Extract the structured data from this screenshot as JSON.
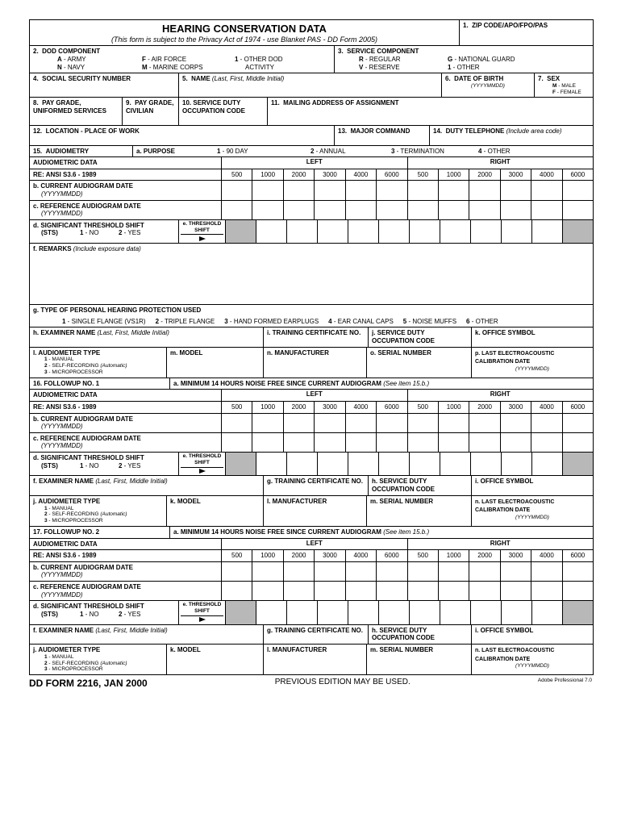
{
  "title": "HEARING CONSERVATION DATA",
  "subtitle": "(This form is subject to the Privacy Act of 1974 - use Blanket PAS - DD Form 2005)",
  "f1": {
    "num": "1.",
    "label": "ZIP CODE/APO/FPO/PAS"
  },
  "f2": {
    "num": "2.",
    "label": "DOD COMPONENT",
    "opts": [
      [
        "A",
        "ARMY"
      ],
      [
        "F",
        "AIR FORCE"
      ],
      [
        "1",
        "OTHER DOD"
      ],
      [
        "N",
        "NAVY"
      ],
      [
        "M",
        "MARINE CORPS"
      ],
      [
        "",
        "ACTIVITY"
      ]
    ]
  },
  "f3": {
    "num": "3.",
    "label": "SERVICE COMPONENT",
    "opts": [
      [
        "R",
        "REGULAR"
      ],
      [
        "G",
        "NATIONAL GUARD"
      ],
      [
        "V",
        "RESERVE"
      ],
      [
        "1",
        "OTHER"
      ]
    ]
  },
  "f4": {
    "num": "4.",
    "label": "SOCIAL SECURITY NUMBER"
  },
  "f5": {
    "num": "5.",
    "label": "NAME",
    "hint": "(Last, First, Middle Initial)"
  },
  "f6": {
    "num": "6.",
    "label": "DATE OF BIRTH",
    "hint": "(YYYYMMDD)"
  },
  "f7": {
    "num": "7.",
    "label": "SEX",
    "opts": [
      [
        "M",
        "MALE"
      ],
      [
        "F",
        "FEMALE"
      ]
    ]
  },
  "f8": {
    "num": "8.",
    "label": "PAY GRADE, UNIFORMED SERVICES"
  },
  "f9": {
    "num": "9.",
    "label": "PAY GRADE, CIVILIAN"
  },
  "f10": {
    "num": "10.",
    "label": "SERVICE DUTY OCCUPATION CODE"
  },
  "f11": {
    "num": "11.",
    "label": "MAILING ADDRESS OF ASSIGNMENT"
  },
  "f12": {
    "num": "12.",
    "label": "LOCATION - PLACE OF WORK"
  },
  "f13": {
    "num": "13.",
    "label": "MAJOR COMMAND"
  },
  "f14": {
    "num": "14.",
    "label": "DUTY TELEPHONE",
    "hint": "(Include area code)"
  },
  "f15": {
    "num": "15.",
    "label": "AUDIOMETRY",
    "purpose_lbl": "a.  PURPOSE",
    "purpose_opts": [
      [
        "1",
        "90 DAY"
      ],
      [
        "2",
        "ANNUAL"
      ],
      [
        "3",
        "TERMINATION"
      ],
      [
        "4",
        "OTHER"
      ]
    ]
  },
  "aud": {
    "hdr1": "AUDIOMETRIC DATA",
    "hdr2": "RE: ANSI S3.6 - 1989",
    "left": "LEFT",
    "right": "RIGHT",
    "freqs": [
      "500",
      "1000",
      "2000",
      "3000",
      "4000",
      "6000",
      "500",
      "1000",
      "2000",
      "3000",
      "4000",
      "6000"
    ]
  },
  "b": {
    "lbl": "b.  CURRENT AUDIOGRAM DATE",
    "hint": "(YYYYMMDD)"
  },
  "c": {
    "lbl": "c.  REFERENCE AUDIOGRAM DATE",
    "hint": "(YYYYMMDD)"
  },
  "d": {
    "lbl": "d.  SIGNIFICANT THRESHOLD SHIFT",
    "sts": "(STS)",
    "opts": [
      [
        "1",
        "NO"
      ],
      [
        "2",
        "YES"
      ]
    ],
    "thresh": "e. THRESHOLD SHIFT"
  },
  "f": {
    "lbl": "f.  REMARKS",
    "hint": "(Include exposure data)"
  },
  "g": {
    "lbl": "g.  TYPE OF PERSONAL HEARING PROTECTION USED",
    "opts": [
      [
        "1",
        "SINGLE FLANGE (VS1R)"
      ],
      [
        "2",
        "TRIPLE FLANGE"
      ],
      [
        "3",
        "HAND FORMED EARPLUGS"
      ],
      [
        "4",
        "EAR CANAL CAPS"
      ],
      [
        "5",
        "NOISE MUFFS"
      ],
      [
        "6",
        "OTHER"
      ]
    ]
  },
  "h": {
    "lbl": "h.  EXAMINER NAME",
    "hint": "(Last, First, Middle Initial)"
  },
  "i": {
    "lbl": "i.  TRAINING CERTIFICATE NO."
  },
  "j": {
    "lbl": "j.  SERVICE DUTY OCCUPATION CODE"
  },
  "k": {
    "lbl": "k.  OFFICE SYMBOL"
  },
  "l": {
    "lbl": "l.  AUDIOMETER TYPE",
    "opts": [
      [
        "1",
        "MANUAL"
      ],
      [
        "2",
        "SELF-RECORDING (Automatic)"
      ],
      [
        "3",
        "MICROPROCESSOR"
      ]
    ]
  },
  "m": {
    "lbl": "m.  MODEL"
  },
  "n": {
    "lbl": "n.  MANUFACTURER"
  },
  "o": {
    "lbl": "o.  SERIAL NUMBER"
  },
  "p": {
    "lbl": "p.  LAST ELECTROACOUSTIC CALIBRATION DATE",
    "hint": "(YYYYMMDD)"
  },
  "f16": {
    "lbl": "16.  FOLLOWUP NO. 1",
    "a": "a.  MINIMUM 14 HOURS NOISE FREE SINCE CURRENT AUDIOGRAM",
    "hint": "(See item 15.b.)"
  },
  "b2": {
    "lbl": "b.  CURRENT AUDIOGRAM  DATE",
    "hint": "(YYYYMMDD)"
  },
  "c2": {
    "lbl": "c.  REFERENCE AUDIOGRAM  DATE",
    "hint": "(YYYYMMDD)"
  },
  "fexam": {
    "lbl": "f.  EXAMINER NAME",
    "hint": "(Last, First, Middle Initial)"
  },
  "g2": {
    "lbl": "g.  TRAINING CERTIFICATE NO."
  },
  "h2": {
    "lbl": "h. SERVICE DUTY OCCUPATION CODE"
  },
  "i2": {
    "lbl": "i.  OFFICE SYMBOL"
  },
  "j2": {
    "lbl": "j.  AUDIOMETER TYPE"
  },
  "k2": {
    "lbl": "k.  MODEL"
  },
  "l2": {
    "lbl": "l.  MANUFACTURER"
  },
  "m2": {
    "lbl": "m.  SERIAL NUMBER"
  },
  "n2": {
    "lbl": "n.  LAST ELECTROACOUSTIC CALIBRATION DATE",
    "hint": "(YYYYMMDD)"
  },
  "f17": {
    "lbl": "17.  FOLLOWUP NO. 2",
    "a": "a.  MINIMUM 14 HOURS NOISE FREE SINCE CURRENT AUDIOGRAM",
    "hint": "(See item 15.b.)"
  },
  "footer": {
    "form": "DD FORM 2216, JAN 2000",
    "prev": "PREVIOUS EDITION MAY BE USED.",
    "app": "Adobe Professional 7.0"
  }
}
